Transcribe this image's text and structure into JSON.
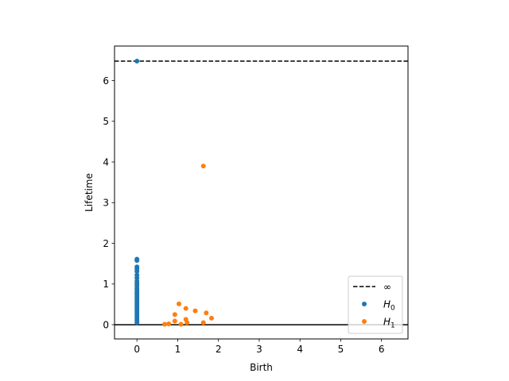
{
  "chart_data": {
    "type": "scatter",
    "xlabel": "Birth",
    "ylabel": "Lifetime",
    "xlim": [
      -0.55,
      6.65
    ],
    "ylim": [
      -0.35,
      6.85
    ],
    "x_ticks": [
      0,
      1,
      2,
      3,
      4,
      5,
      6
    ],
    "y_ticks": [
      0,
      1,
      2,
      3,
      4,
      5,
      6
    ],
    "infinity_value": 6.48,
    "baseline_value": 0,
    "legend_position": "lower right",
    "series": [
      {
        "name": "∞",
        "kind": "dashed-line",
        "color": "#000000",
        "points": []
      },
      {
        "name": "H0",
        "label_base": "H",
        "label_sub": "0",
        "kind": "points",
        "color": "#1f77b4",
        "points": [
          [
            0,
            6.48
          ],
          [
            0,
            1.61
          ],
          [
            0,
            1.58
          ],
          [
            0,
            1.42
          ],
          [
            0,
            1.37
          ],
          [
            0,
            1.31
          ],
          [
            0,
            1.22
          ],
          [
            0,
            1.15
          ],
          [
            0,
            1.07
          ],
          [
            0,
            1.01
          ],
          [
            0,
            0.96
          ],
          [
            0,
            0.9
          ],
          [
            0,
            0.85
          ],
          [
            0,
            0.8
          ],
          [
            0,
            0.75
          ],
          [
            0,
            0.7
          ],
          [
            0,
            0.65
          ],
          [
            0,
            0.6
          ],
          [
            0,
            0.55
          ],
          [
            0,
            0.5
          ],
          [
            0,
            0.45
          ],
          [
            0,
            0.4
          ],
          [
            0,
            0.35
          ],
          [
            0,
            0.3
          ],
          [
            0,
            0.25
          ],
          [
            0,
            0.2
          ],
          [
            0,
            0.15
          ],
          [
            0,
            0.1
          ],
          [
            0,
            0.05
          ]
        ]
      },
      {
        "name": "H1",
        "label_base": "H",
        "label_sub": "1",
        "kind": "points",
        "color": "#ff7f0e",
        "points": [
          [
            1.63,
            3.9
          ],
          [
            1.03,
            0.51
          ],
          [
            1.2,
            0.4
          ],
          [
            1.43,
            0.34
          ],
          [
            1.7,
            0.29
          ],
          [
            0.93,
            0.25
          ],
          [
            1.83,
            0.16
          ],
          [
            0.93,
            0.09
          ],
          [
            1.2,
            0.13
          ],
          [
            1.23,
            0.05
          ],
          [
            0.68,
            0.01
          ],
          [
            0.78,
            0.02
          ],
          [
            1.08,
            0.01
          ],
          [
            1.63,
            0.05
          ]
        ]
      }
    ]
  }
}
